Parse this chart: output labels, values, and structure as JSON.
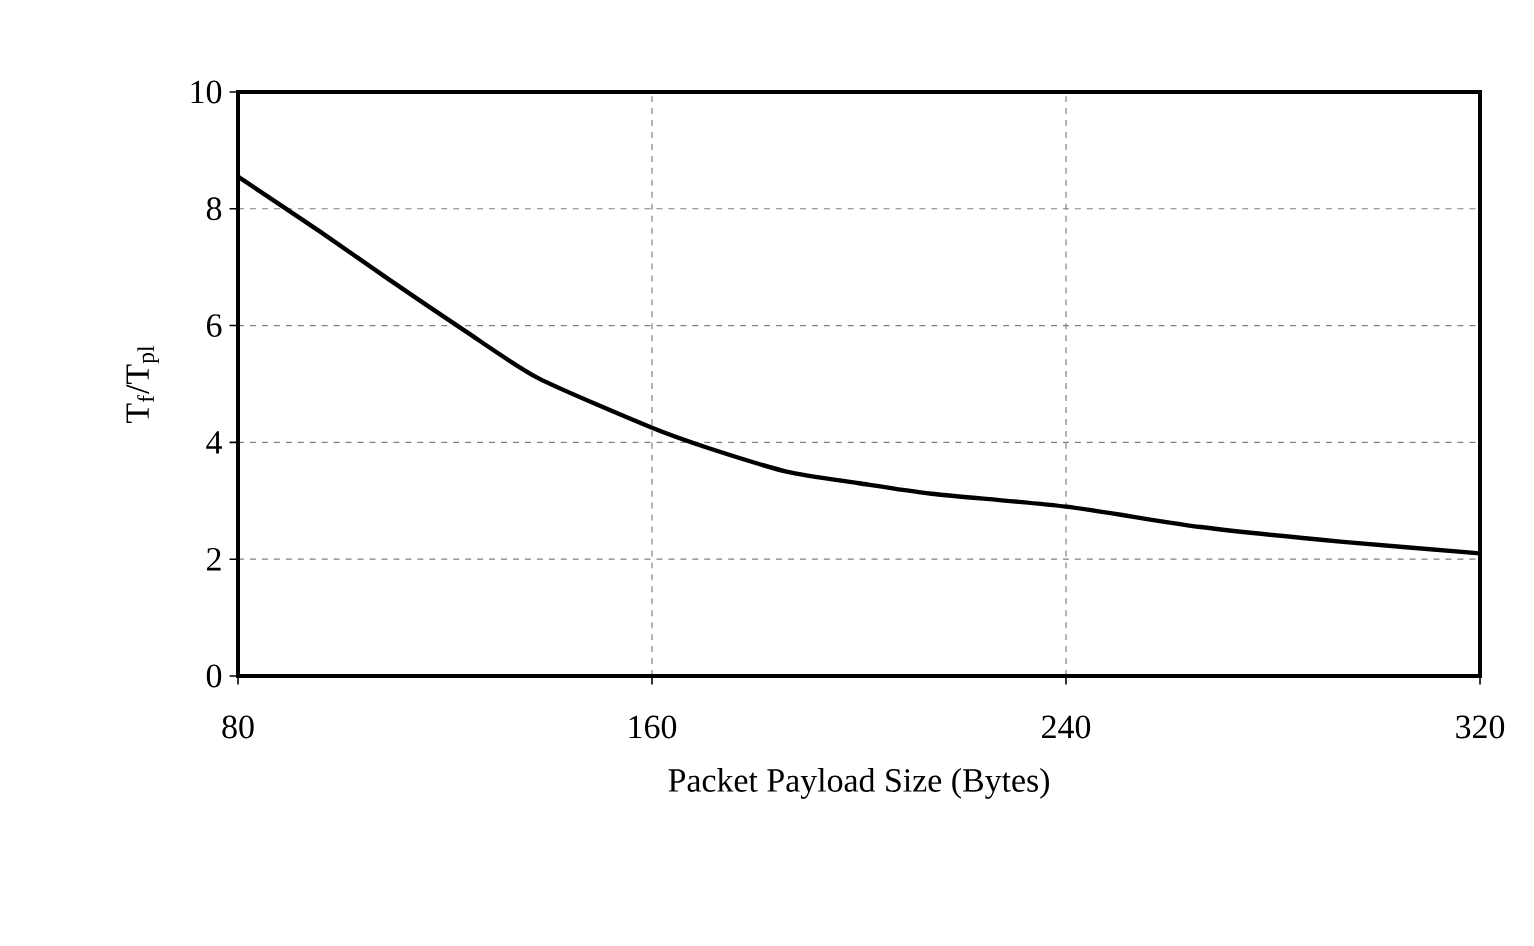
{
  "chart_data": {
    "type": "line",
    "xlabel": "Packet Payload Size (Bytes)",
    "ylabel": "T$_{f}$/T$_{pl}$",
    "x": [
      80,
      96,
      109,
      124,
      138,
      160,
      171,
      186,
      200,
      214,
      240,
      266,
      293,
      320
    ],
    "series": [
      {
        "color": "#000000",
        "values": [
          8.55,
          7.6,
          6.8,
          5.9,
          5.1,
          4.25,
          3.9,
          3.5,
          3.3,
          3.12,
          2.9,
          2.55,
          2.3,
          2.1
        ]
      }
    ],
    "xlim": [
      80,
      320
    ],
    "xticks": [
      80,
      160,
      240,
      320
    ],
    "ylim": [
      0,
      10
    ],
    "yticks": [
      0,
      2,
      4,
      6,
      8,
      10
    ],
    "grid": true,
    "marker": "none",
    "line_style": "solid"
  }
}
